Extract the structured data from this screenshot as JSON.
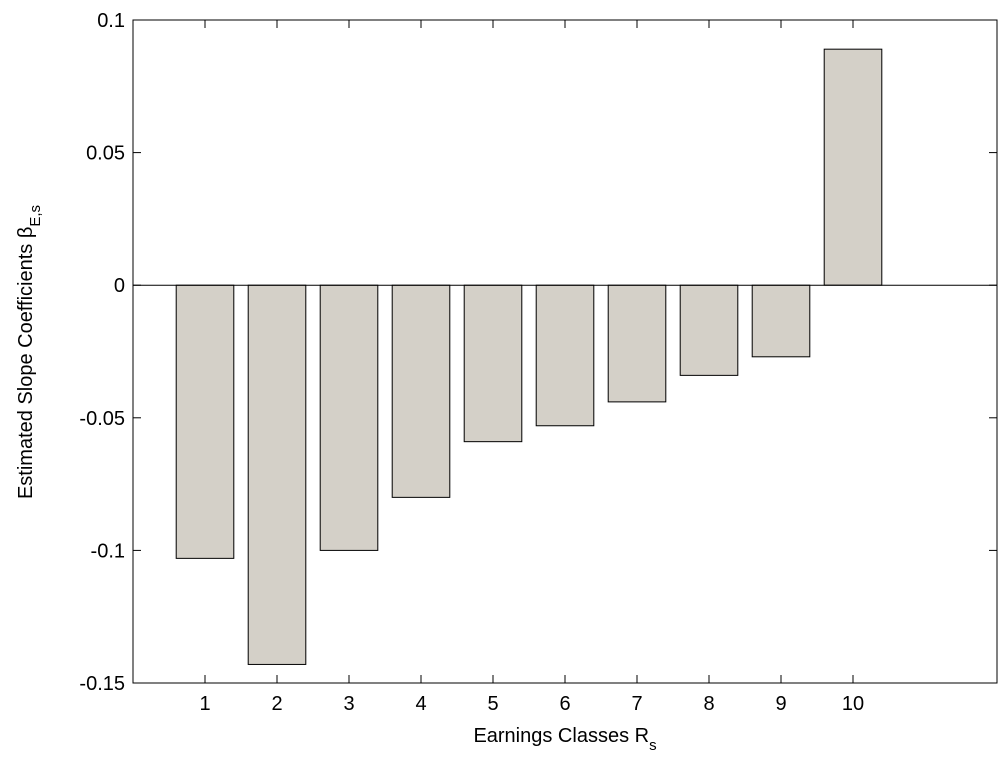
{
  "chart_data": {
    "type": "bar",
    "xlabel": "Earnings Classes R",
    "xlabel_subscript": "s",
    "ylabel": "Estimated Slope Coefficients β",
    "ylabel_subscript": "E,s",
    "x": [
      1,
      2,
      3,
      4,
      5,
      6,
      7,
      8,
      9,
      10
    ],
    "values": [
      -0.103,
      -0.143,
      -0.1,
      -0.08,
      -0.059,
      -0.053,
      -0.044,
      -0.034,
      -0.027,
      0.089
    ],
    "color": "#d4d0c8",
    "xlim": [
      0,
      12
    ],
    "ylim": [
      -0.15,
      0.1
    ],
    "yticks": [
      -0.15,
      -0.1,
      -0.05,
      0,
      0.05,
      0.1
    ]
  }
}
